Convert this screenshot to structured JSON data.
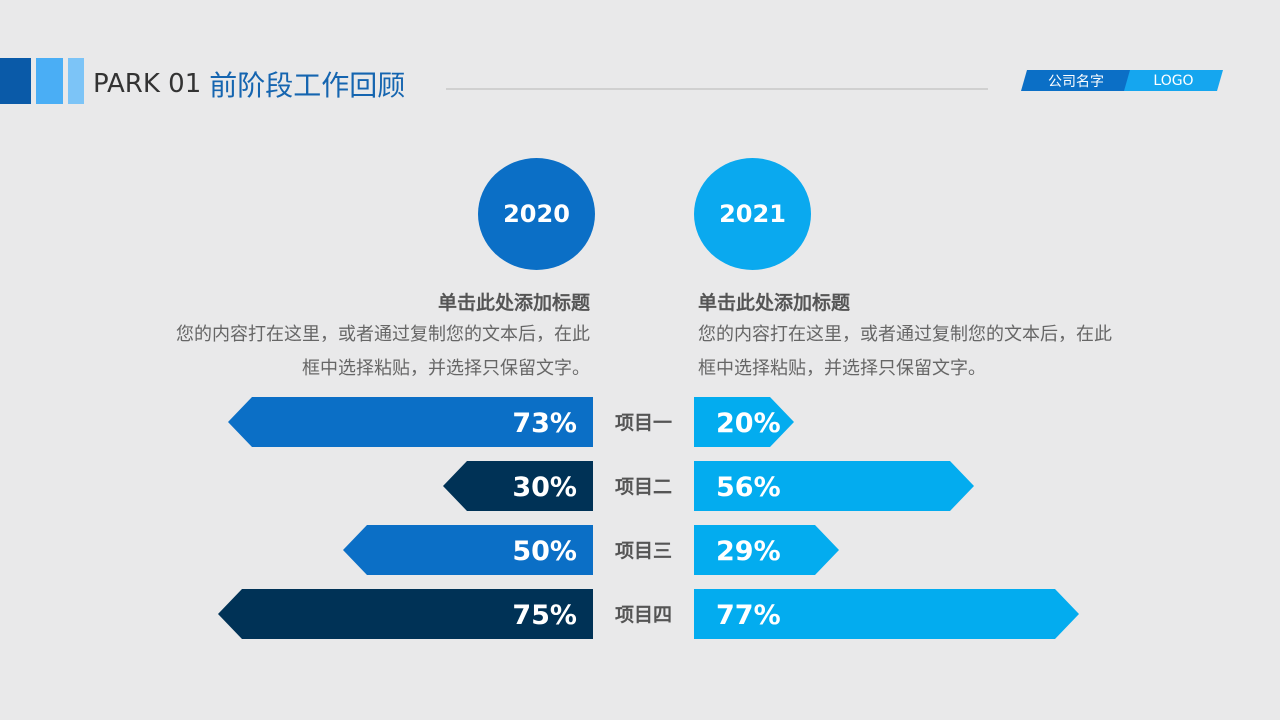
{
  "header": {
    "section": "PARK 01",
    "title": "前阶段工作回顾",
    "company": "公司名字",
    "logo": "LOGO"
  },
  "colors": {
    "accent_dark": "#0b6fc6",
    "accent_light": "#15a6ef",
    "navy": "#003256",
    "deco1": "#0a5aa8",
    "deco2": "#4aaef5",
    "deco3": "#7cc4f7"
  },
  "chart_data": {
    "type": "bar",
    "categories": [
      "项目一",
      "项目二",
      "项目三",
      "项目四"
    ],
    "series": [
      {
        "name": "2020",
        "values": [
          73,
          30,
          50,
          75
        ],
        "labels": [
          "73%",
          "30%",
          "50%",
          "75%"
        ]
      },
      {
        "name": "2021",
        "values": [
          20,
          56,
          29,
          77
        ],
        "labels": [
          "20%",
          "56%",
          "29%",
          "77%"
        ]
      }
    ],
    "ylim": [
      0,
      100
    ],
    "legend": "top",
    "grid": false
  },
  "left": {
    "year": "2020",
    "heading": "单击此处添加标题",
    "line1": "您的内容打在这里，或者通过复制您的文本后，在此",
    "line2": "框中选择粘贴，并选择只保留文字。"
  },
  "right": {
    "year": "2021",
    "heading": "单击此处添加标题",
    "line1": "您的内容打在这里，或者通过复制您的文本后，在此",
    "line2": "框中选择粘贴，并选择只保留文字。"
  }
}
